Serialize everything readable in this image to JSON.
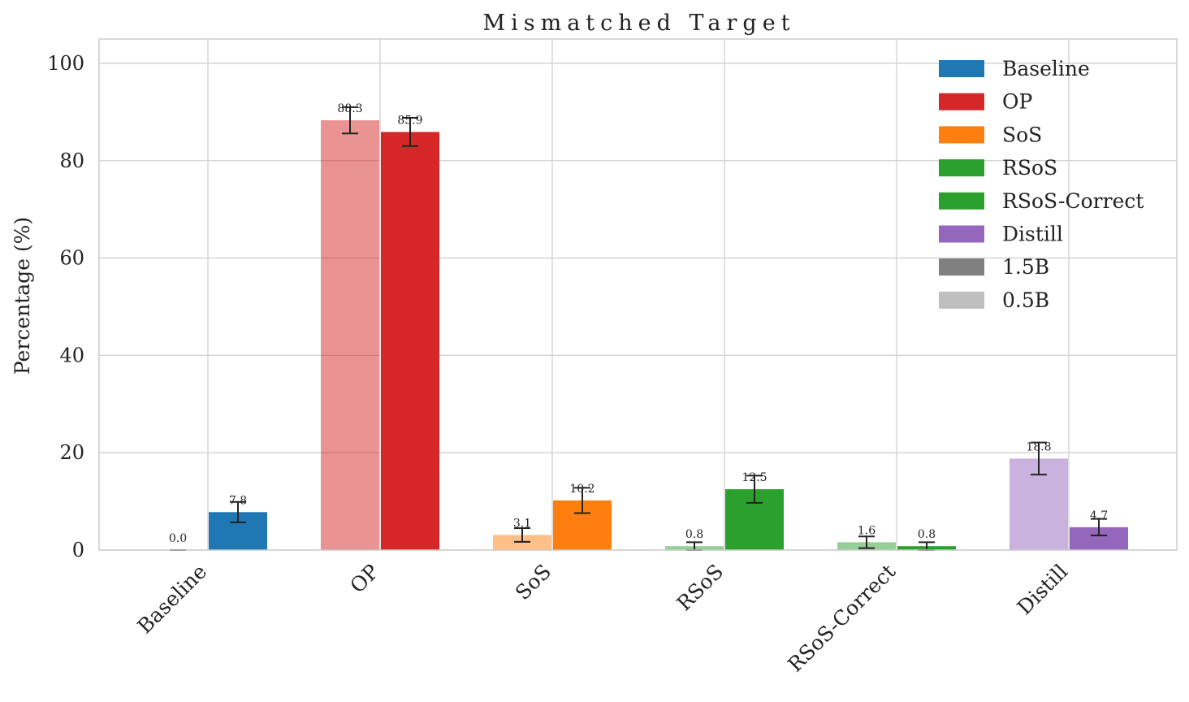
{
  "chart_data": {
    "type": "bar",
    "title": "Mismatched Target",
    "xlabel": "",
    "ylabel": "Percentage (%)",
    "ylim": [
      0,
      105
    ],
    "yticks": [
      "0",
      "20",
      "40",
      "60",
      "80",
      "100"
    ],
    "ytick_values": [
      0,
      20,
      40,
      60,
      80,
      100
    ],
    "categories": [
      "Baseline",
      "OP",
      "SoS",
      "RSoS",
      "RSoS-Correct",
      "Distill"
    ],
    "category_colors": [
      "#1f77b4",
      "#d62728",
      "#ff7f0e",
      "#2ca02c",
      "#2ca02c",
      "#9467bd"
    ],
    "series": [
      {
        "name": "0.5B",
        "opacity": 0.5,
        "values": [
          0.0,
          88.3,
          3.1,
          0.8,
          1.6,
          18.8
        ],
        "labels": [
          "0.0",
          "88.3",
          "3.1",
          "0.8",
          "1.6",
          "18.8"
        ],
        "errors": [
          0.0,
          2.7,
          1.4,
          0.8,
          1.2,
          3.3
        ]
      },
      {
        "name": "1.5B",
        "opacity": 1.0,
        "values": [
          7.8,
          85.9,
          10.2,
          12.5,
          0.8,
          4.7
        ],
        "labels": [
          "7.8",
          "85.9",
          "10.2",
          "12.5",
          "0.8",
          "4.7"
        ],
        "errors": [
          2.1,
          2.9,
          2.6,
          2.8,
          0.8,
          1.7
        ]
      }
    ],
    "legend": {
      "placement": "top-right",
      "entries": [
        {
          "label": "Baseline",
          "color": "#1f77b4"
        },
        {
          "label": "OP",
          "color": "#d62728"
        },
        {
          "label": "SoS",
          "color": "#ff7f0e"
        },
        {
          "label": "RSoS",
          "color": "#2ca02c"
        },
        {
          "label": "RSoS-Correct",
          "color": "#2ca02c"
        },
        {
          "label": "Distill",
          "color": "#9467bd"
        },
        {
          "label": "1.5B",
          "color": "#808080"
        },
        {
          "label": "0.5B",
          "color": "#bfbfbf"
        }
      ]
    },
    "grid": true
  }
}
